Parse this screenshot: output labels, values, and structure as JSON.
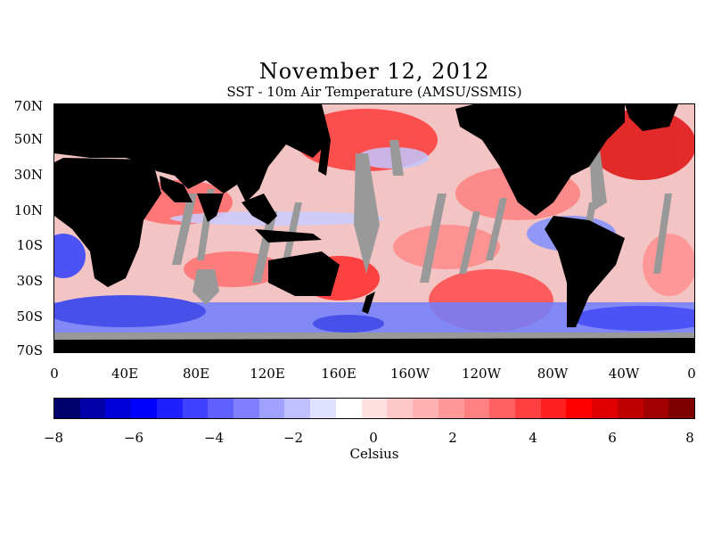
{
  "title": "November 12, 2012",
  "subtitle": "SST - 10m Air Temperature (AMSU/SSMIS)",
  "lat_labels": [
    "70N",
    "50N",
    "30N",
    "10N",
    "10S",
    "30S",
    "50S",
    "70S"
  ],
  "lon_labels": [
    "0",
    "40E",
    "80E",
    "120E",
    "160E",
    "160W",
    "120W",
    "80W",
    "40W",
    "0"
  ],
  "colorbar": {
    "ticks": [
      "−8",
      "−6",
      "−4",
      "−2",
      "0",
      "2",
      "4",
      "6",
      "8"
    ],
    "unit": "Celsius",
    "min": -8,
    "max": 8,
    "colors": [
      "#00006e",
      "#0000a8",
      "#0000d8",
      "#0000ff",
      "#2020ff",
      "#4040ff",
      "#6060ff",
      "#8080ff",
      "#a0a0ff",
      "#c0c0ff",
      "#e0e0ff",
      "#ffffff",
      "#ffe0e0",
      "#ffc8c8",
      "#ffb0b0",
      "#ff9898",
      "#ff8080",
      "#ff6060",
      "#ff4040",
      "#ff2020",
      "#ff0000",
      "#e00000",
      "#c00000",
      "#a00000",
      "#800000"
    ]
  },
  "map": {
    "land_color": "#000000",
    "no_data_color": "#999999",
    "warm_color": "#ff3030",
    "cool_color": "#3040ff"
  }
}
